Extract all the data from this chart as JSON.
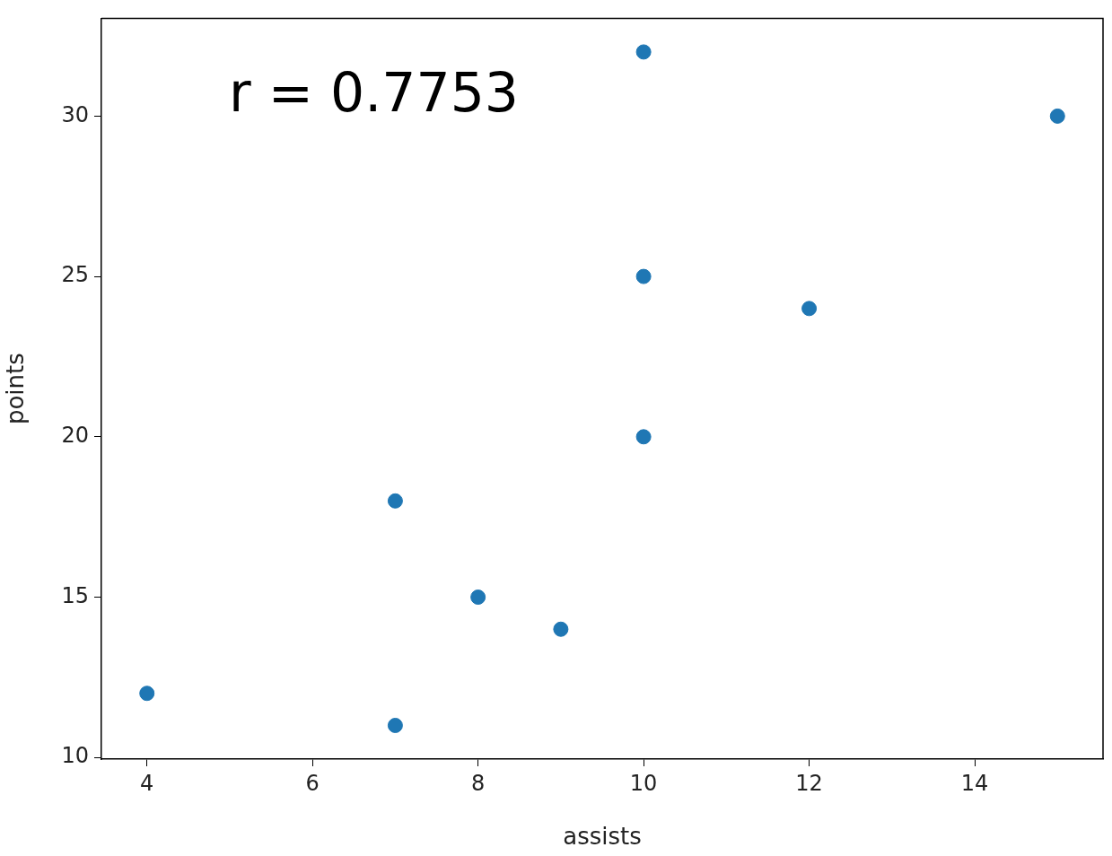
{
  "chart_data": {
    "type": "scatter",
    "xlabel": "assists",
    "ylabel": "points",
    "annotations": [
      "r = 0.7753"
    ],
    "x": [
      4,
      7,
      7,
      8,
      9,
      10,
      10,
      10,
      12,
      15
    ],
    "series": [
      {
        "color": "#1f77b4",
        "values": [
          12,
          11,
          18,
          15,
          14,
          20,
          25,
          32,
          24,
          30
        ]
      }
    ],
    "xlim": [
      3.45,
      15.55
    ],
    "xticks": [
      4,
      6,
      8,
      10,
      12,
      14
    ],
    "ylim": [
      9.95,
      33.05
    ],
    "yticks": [
      10,
      15,
      20,
      25,
      30
    ],
    "grid": false,
    "legend": false,
    "marker": "circle"
  }
}
